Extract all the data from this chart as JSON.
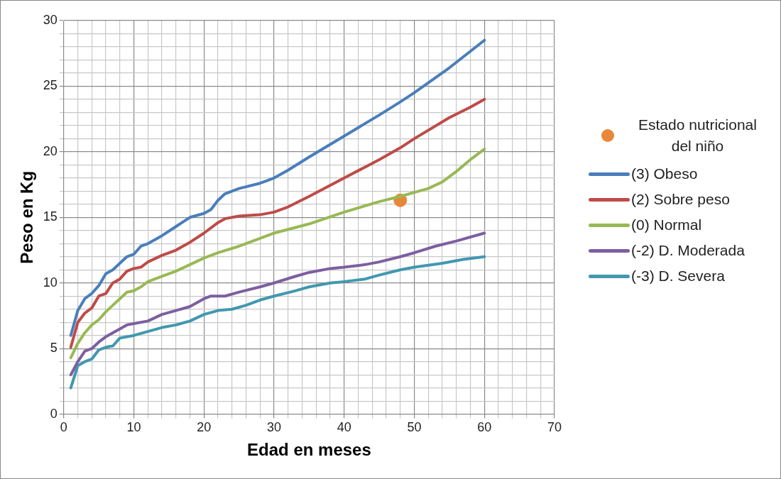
{
  "chart_data": {
    "type": "line",
    "xlabel": "Edad en meses",
    "ylabel": "Peso en Kg",
    "xlim": [
      0,
      70
    ],
    "ylim": [
      0,
      30
    ],
    "xticks": [
      0,
      {
        "value": 2,
        "label": null
      },
      {
        "value": 4,
        "label": null
      },
      {
        "value": 6,
        "label": null
      },
      {
        "value": 8,
        "label": null
      },
      10,
      {
        "value": 12,
        "label": null
      },
      {
        "value": 14,
        "label": null
      },
      {
        "value": 16,
        "label": null
      },
      {
        "value": 18,
        "label": null
      },
      20,
      {
        "value": 22,
        "label": null
      },
      {
        "value": 24,
        "label": null
      },
      {
        "value": 26,
        "label": null
      },
      {
        "value": 28,
        "label": null
      },
      30,
      {
        "value": 32,
        "label": null
      },
      {
        "value": 34,
        "label": null
      },
      {
        "value": 36,
        "label": null
      },
      {
        "value": 38,
        "label": null
      },
      40,
      {
        "value": 42,
        "label": null
      },
      {
        "value": 44,
        "label": null
      },
      {
        "value": 46,
        "label": null
      },
      {
        "value": 48,
        "label": null
      },
      50,
      {
        "value": 52,
        "label": null
      },
      {
        "value": 54,
        "label": null
      },
      {
        "value": 56,
        "label": null
      },
      {
        "value": 58,
        "label": null
      },
      60,
      {
        "value": 62,
        "label": null
      },
      {
        "value": 64,
        "label": null
      },
      {
        "value": 66,
        "label": null
      },
      {
        "value": 68,
        "label": null
      },
      70
    ],
    "yticks": [
      0,
      {
        "value": 1,
        "label": null
      },
      {
        "value": 2,
        "label": null
      },
      {
        "value": 3,
        "label": null
      },
      {
        "value": 4,
        "label": null
      },
      5,
      {
        "value": 6,
        "label": null
      },
      {
        "value": 7,
        "label": null
      },
      {
        "value": 8,
        "label": null
      },
      {
        "value": 9,
        "label": null
      },
      10,
      {
        "value": 11,
        "label": null
      },
      {
        "value": 12,
        "label": null
      },
      {
        "value": 13,
        "label": null
      },
      {
        "value": 14,
        "label": null
      },
      15,
      {
        "value": 16,
        "label": null
      },
      {
        "value": 17,
        "label": null
      },
      {
        "value": 18,
        "label": null
      },
      {
        "value": 19,
        "label": null
      },
      20,
      {
        "value": 21,
        "label": null
      },
      {
        "value": 22,
        "label": null
      },
      {
        "value": 23,
        "label": null
      },
      {
        "value": 24,
        "label": null
      },
      25,
      {
        "value": 26,
        "label": null
      },
      {
        "value": 27,
        "label": null
      },
      {
        "value": 28,
        "label": null
      },
      {
        "value": 29,
        "label": null
      },
      30
    ],
    "grid": true,
    "legend": "right",
    "marker": "none",
    "line_style": "solid",
    "series": [
      {
        "name": "Estado nutricional del niño",
        "type": "scatter",
        "marker": "circle",
        "color": "#e8873a",
        "x": [
          48
        ],
        "values": [
          16.3
        ]
      },
      {
        "name": "(3) Obeso",
        "color": "#4a7ebb",
        "x": [
          1,
          2,
          3,
          4,
          5,
          6,
          7,
          8,
          9,
          10,
          11,
          12,
          14,
          16,
          18,
          20,
          21,
          22,
          23,
          25,
          28,
          30,
          32,
          35,
          40,
          45,
          48,
          50,
          55,
          60
        ],
        "values": [
          6,
          7.9,
          8.8,
          9.2,
          9.8,
          10.7,
          11,
          11.5,
          12,
          12.2,
          12.8,
          13,
          13.6,
          14.3,
          15,
          15.3,
          15.6,
          16.3,
          16.8,
          17.2,
          17.6,
          18,
          18.6,
          19.6,
          21.2,
          22.8,
          23.8,
          24.5,
          26.4,
          28.5
        ]
      },
      {
        "name": "(2) Sobre peso",
        "color": "#be4b48",
        "x": [
          1,
          2,
          3,
          4,
          5,
          6,
          7,
          8,
          9,
          10,
          11,
          12,
          14,
          16,
          18,
          20,
          22,
          23,
          25,
          28,
          30,
          32,
          35,
          40,
          45,
          48,
          50,
          55,
          58,
          60
        ],
        "values": [
          5.1,
          7,
          7.7,
          8.1,
          9,
          9.2,
          10,
          10.3,
          10.9,
          11.1,
          11.2,
          11.6,
          12.1,
          12.5,
          13.1,
          13.8,
          14.6,
          14.9,
          15.1,
          15.2,
          15.4,
          15.8,
          16.6,
          18,
          19.4,
          20.3,
          21,
          22.6,
          23.4,
          24
        ]
      },
      {
        "name": "(0) Normal",
        "color": "#98b954",
        "x": [
          1,
          2,
          3,
          4,
          5,
          6,
          7,
          8,
          9,
          10,
          11,
          12,
          14,
          16,
          18,
          20,
          22,
          25,
          28,
          30,
          35,
          40,
          45,
          48,
          50,
          52,
          54,
          56,
          58,
          60
        ],
        "values": [
          4.3,
          5.4,
          6.2,
          6.8,
          7.2,
          7.8,
          8.3,
          8.8,
          9.3,
          9.4,
          9.7,
          10.1,
          10.5,
          10.9,
          11.4,
          11.9,
          12.3,
          12.8,
          13.4,
          13.8,
          14.5,
          15.4,
          16.2,
          16.6,
          16.9,
          17.2,
          17.7,
          18.5,
          19.4,
          20.2
        ]
      },
      {
        "name": "(-2) D. Moderada",
        "color": "#7d5fa0",
        "x": [
          1,
          2,
          3,
          4,
          5,
          6,
          7,
          8,
          9,
          10,
          12,
          14,
          16,
          18,
          20,
          21,
          23,
          25,
          28,
          30,
          33,
          35,
          38,
          40,
          43,
          45,
          48,
          50,
          53,
          56,
          60
        ],
        "values": [
          3,
          4,
          4.8,
          5,
          5.5,
          5.9,
          6.2,
          6.5,
          6.8,
          6.9,
          7.1,
          7.6,
          7.9,
          8.2,
          8.8,
          9,
          9,
          9.3,
          9.7,
          10,
          10.5,
          10.8,
          11.1,
          11.2,
          11.4,
          11.6,
          12,
          12.3,
          12.8,
          13.2,
          13.8
        ]
      },
      {
        "name": "(-3) D. Severa",
        "color": "#4198af",
        "x": [
          1,
          2,
          3,
          4,
          5,
          6,
          7,
          8,
          10,
          12,
          14,
          16,
          18,
          20,
          22,
          24,
          26,
          28,
          30,
          33,
          35,
          38,
          40,
          43,
          45,
          48,
          50,
          54,
          57,
          60
        ],
        "values": [
          2,
          3.7,
          4,
          4.2,
          4.9,
          5.1,
          5.2,
          5.8,
          6,
          6.3,
          6.6,
          6.8,
          7.1,
          7.6,
          7.9,
          8,
          8.3,
          8.7,
          9,
          9.4,
          9.7,
          10,
          10.1,
          10.3,
          10.6,
          11,
          11.2,
          11.5,
          11.8,
          12
        ]
      }
    ]
  }
}
